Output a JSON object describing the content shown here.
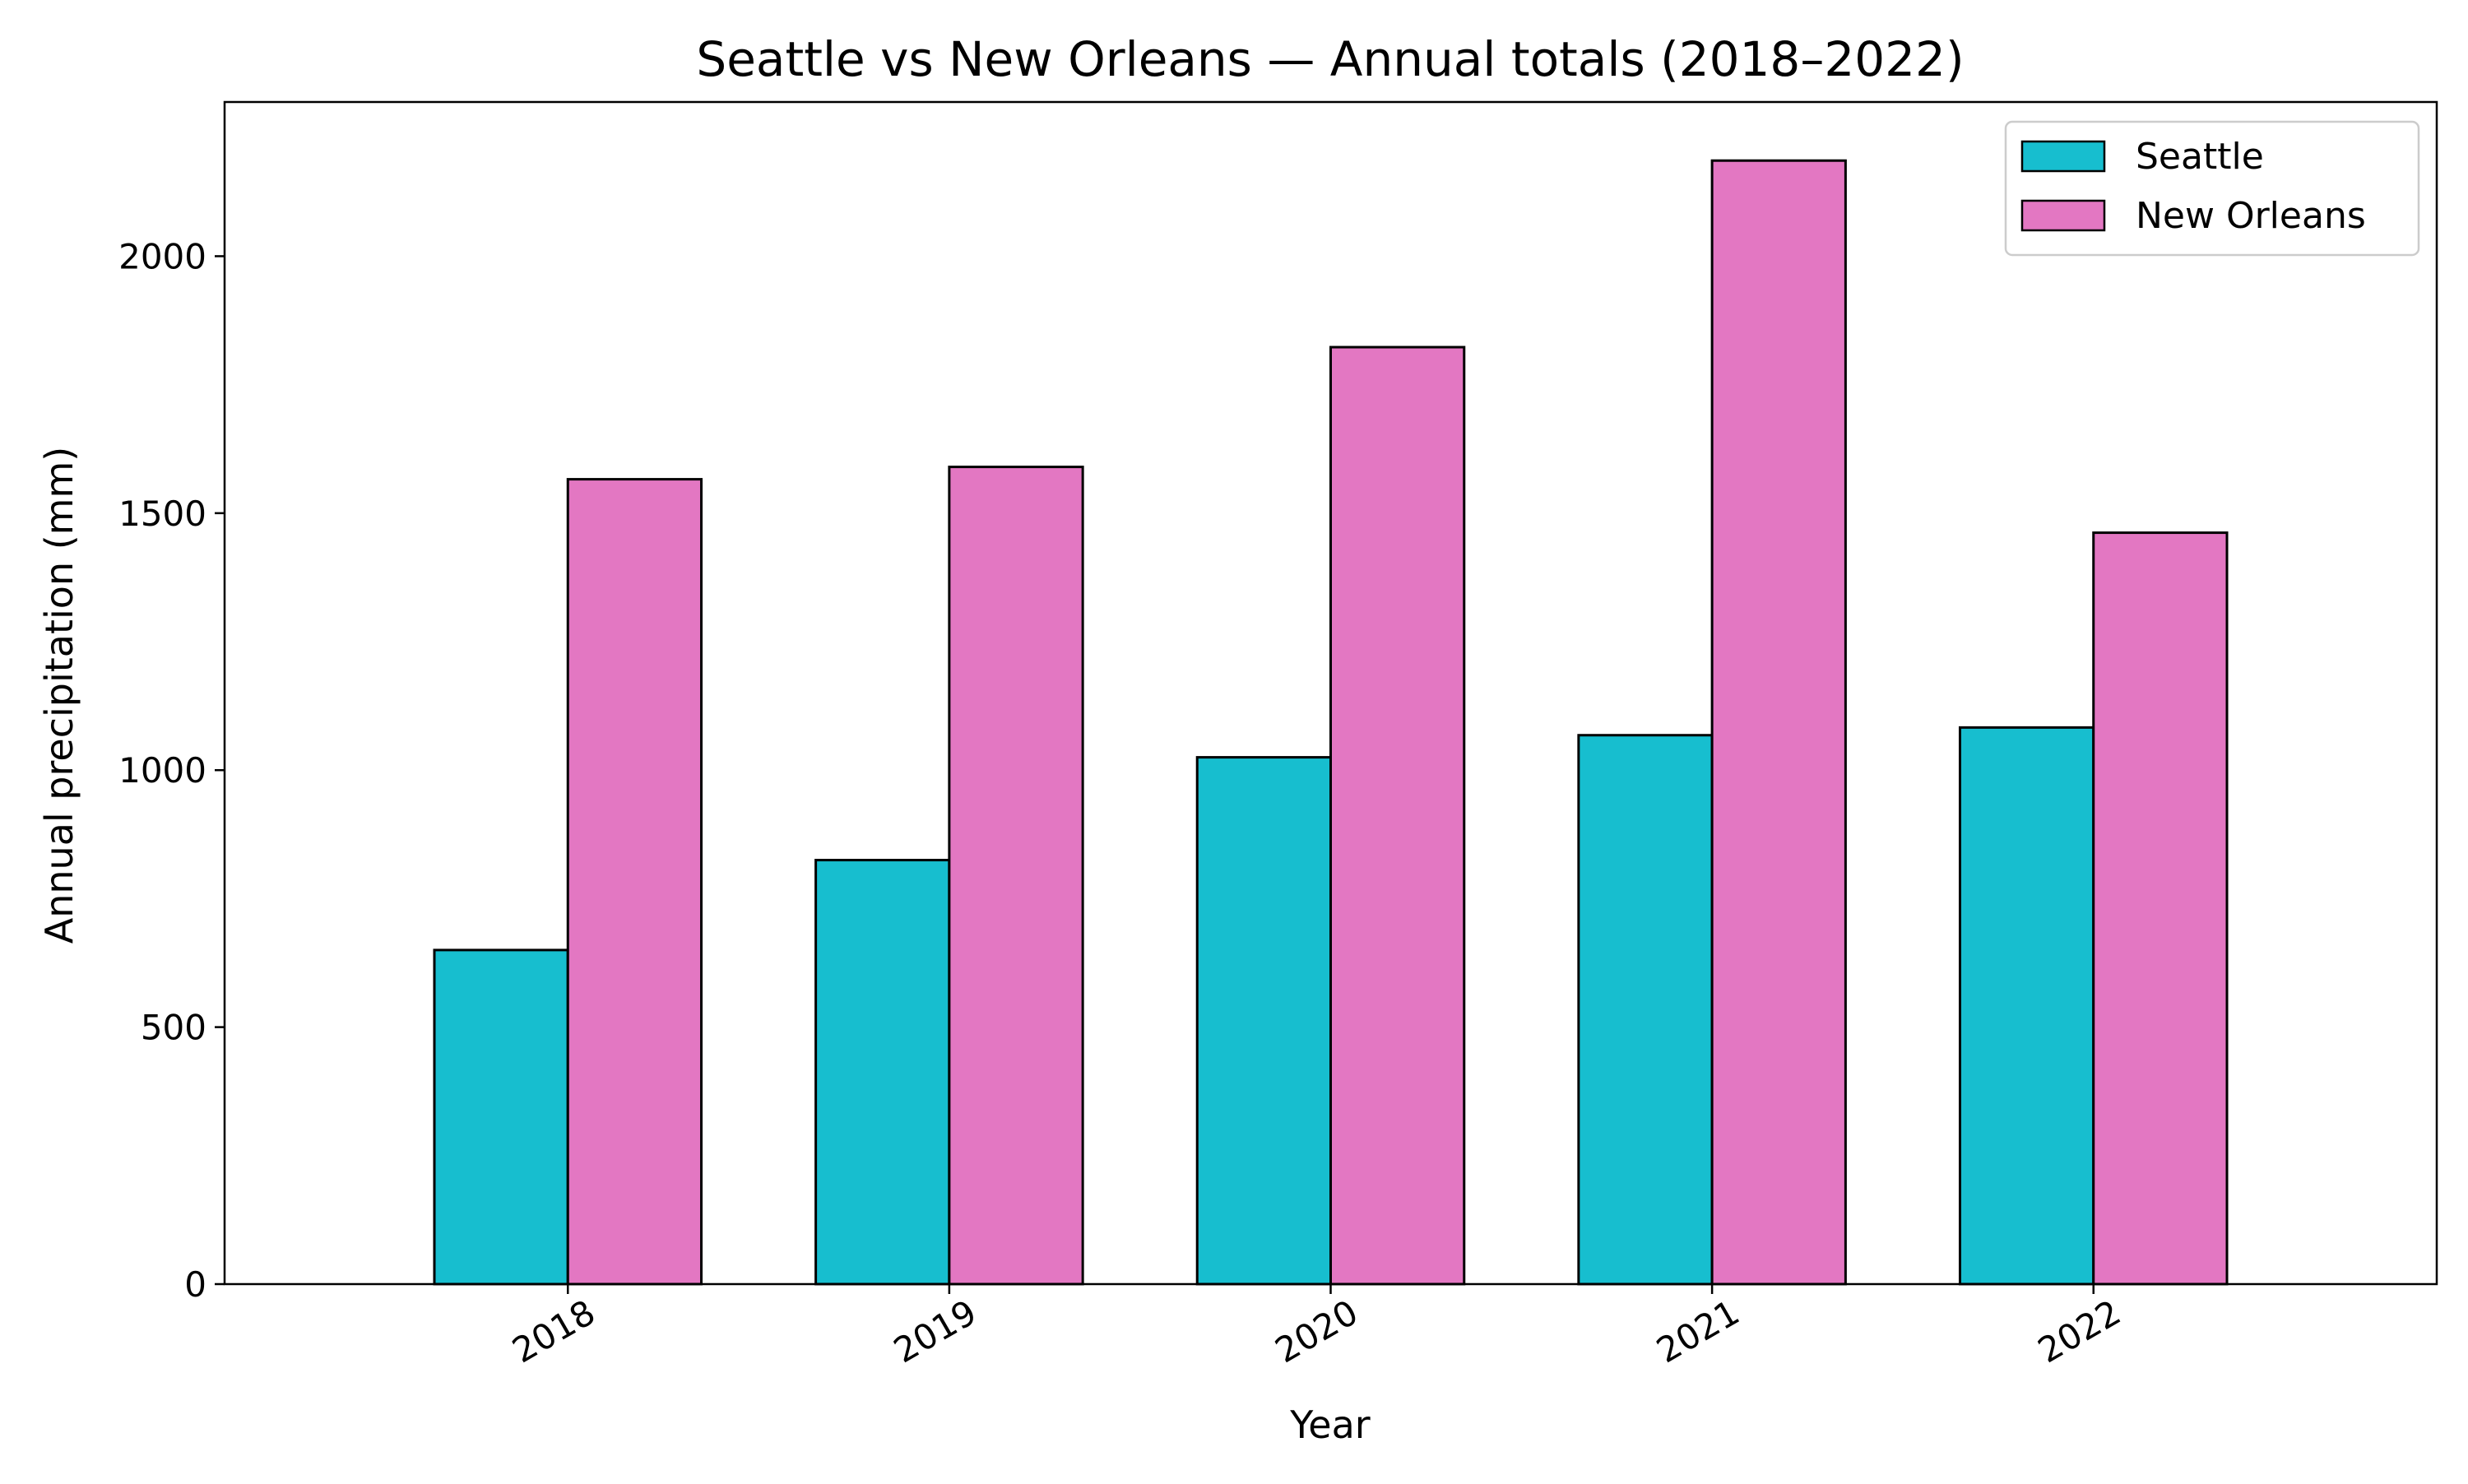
{
  "chart_data": {
    "type": "bar",
    "title": "Seattle vs New Orleans — Annual totals (2018–2022)",
    "xlabel": "Year",
    "ylabel": "Annual precipitation (mm)",
    "categories": [
      "2018",
      "2019",
      "2020",
      "2021",
      "2022"
    ],
    "series": [
      {
        "name": "Seattle",
        "color": "#17becf",
        "values": [
          650,
          825,
          1025,
          1068,
          1083
        ]
      },
      {
        "name": "New Orleans",
        "color": "#e377c2",
        "values": [
          1566,
          1590,
          1823,
          2186,
          1462
        ]
      }
    ],
    "ylim": [
      0,
      2300
    ],
    "yticks": [
      0,
      500,
      1000,
      1500,
      2000
    ],
    "grid": false,
    "legend_position": "top-right",
    "edge_color": "#000000"
  }
}
